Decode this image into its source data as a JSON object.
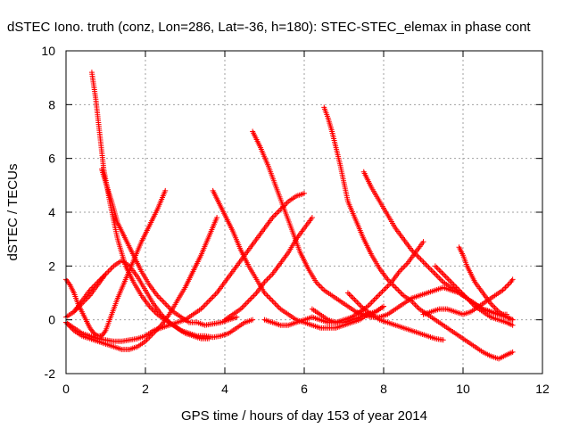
{
  "chart_data": {
    "type": "scatter",
    "title": "dSTEC Iono. truth (conz, Lon=286, Lat=-36, h=180): STEC-STEC_elemax in phase cont",
    "xlabel": "GPS time / hours of day 153 of year 2014",
    "ylabel": "dSTEC  / TECUs",
    "xlim": [
      0,
      12
    ],
    "ylim": [
      -2,
      10
    ],
    "xticks": [
      "0",
      "2",
      "4",
      "6",
      "8",
      "10",
      "12"
    ],
    "yticks": [
      "-2",
      "0",
      "2",
      "4",
      "6",
      "8",
      "10"
    ],
    "grid": true,
    "legend": "none",
    "marker": "+",
    "color": "#ff0000",
    "series": [
      {
        "x": [
          0.65,
          0.75,
          0.85,
          0.95,
          1.1,
          1.3,
          1.5,
          1.7,
          1.9,
          2.1,
          2.3,
          2.5,
          2.7,
          2.9,
          3.1,
          3.3,
          3.5,
          3.7,
          3.9,
          4.1,
          4.3,
          4.5,
          4.7
        ],
        "y": [
          9.2,
          8.2,
          6.9,
          5.6,
          4.4,
          3.0,
          2.0,
          1.4,
          0.9,
          0.5,
          0.2,
          0.0,
          -0.2,
          -0.4,
          -0.5,
          -0.6,
          -0.6,
          -0.65,
          -0.6,
          -0.5,
          -0.3,
          -0.1,
          0.0
        ]
      },
      {
        "x": [
          0.9,
          1.0,
          1.15,
          1.3,
          1.5,
          1.7,
          1.9,
          2.1,
          2.3,
          2.5,
          2.7,
          2.9,
          3.1,
          3.3,
          3.5,
          3.7,
          3.9,
          4.1,
          4.3
        ],
        "y": [
          5.6,
          5.1,
          4.4,
          3.6,
          3.0,
          2.4,
          1.8,
          1.3,
          0.9,
          0.6,
          0.3,
          0.1,
          -0.1,
          -0.1,
          -0.2,
          -0.15,
          -0.1,
          0.0,
          0.1
        ]
      },
      {
        "x": [
          0.0,
          0.2,
          0.4,
          0.6,
          0.8,
          1.0,
          1.2,
          1.4,
          1.6,
          1.8,
          2.0,
          2.2,
          2.4,
          2.6,
          2.8,
          3.0,
          3.2,
          3.4,
          3.6,
          3.8,
          4.0,
          4.2,
          4.4,
          4.6,
          4.8,
          5.0,
          5.2,
          5.4,
          5.6,
          5.8,
          6.0
        ],
        "y": [
          -0.1,
          -0.3,
          -0.5,
          -0.6,
          -0.7,
          -0.75,
          -0.8,
          -0.8,
          -0.75,
          -0.7,
          -0.6,
          -0.4,
          -0.3,
          -0.2,
          -0.1,
          0.0,
          0.2,
          0.4,
          0.7,
          1.0,
          1.4,
          1.8,
          2.2,
          2.6,
          3.0,
          3.4,
          3.8,
          4.1,
          4.4,
          4.6,
          4.7
        ]
      },
      {
        "x": [
          0.0,
          0.1,
          0.2,
          0.3,
          0.4,
          0.5,
          0.6,
          0.7,
          0.8,
          0.9,
          1.0,
          1.1,
          1.3,
          1.5,
          1.7,
          1.9,
          2.1,
          2.3,
          2.5
        ],
        "y": [
          1.5,
          1.3,
          1.0,
          0.6,
          0.3,
          0.0,
          -0.3,
          -0.5,
          -0.6,
          -0.6,
          -0.4,
          0.0,
          0.8,
          1.5,
          2.2,
          2.9,
          3.5,
          4.1,
          4.8
        ]
      },
      {
        "x": [
          0.0,
          0.2,
          0.4,
          0.6,
          0.8,
          1.0,
          1.2,
          1.4,
          1.6,
          1.8,
          2.0,
          2.2,
          2.4,
          2.6,
          2.8,
          3.0,
          3.2,
          3.4,
          3.6,
          3.8
        ],
        "y": [
          -0.1,
          -0.4,
          -0.6,
          -0.7,
          -0.8,
          -0.9,
          -1.0,
          -1.1,
          -1.1,
          -1.0,
          -0.8,
          -0.5,
          -0.2,
          0.2,
          0.7,
          1.2,
          1.8,
          2.4,
          3.1,
          3.8
        ]
      },
      {
        "x": [
          0.0,
          0.2,
          0.4,
          0.6,
          0.8,
          1.0,
          1.2,
          1.4,
          1.6,
          1.8,
          2.0,
          2.2,
          2.4,
          2.6,
          2.8,
          3.0,
          3.2,
          3.4,
          3.6
        ],
        "y": [
          0.1,
          0.3,
          0.6,
          0.9,
          1.3,
          1.7,
          2.0,
          2.2,
          2.0,
          1.6,
          1.1,
          0.6,
          0.2,
          -0.1,
          -0.3,
          -0.5,
          -0.6,
          -0.7,
          -0.7
        ]
      },
      {
        "x": [
          0.2,
          0.4,
          0.6,
          0.8,
          1.0
        ],
        "y": [
          0.3,
          0.7,
          1.1,
          1.4,
          1.7
        ]
      },
      {
        "x": [
          3.7,
          3.8,
          4.0,
          4.2,
          4.4,
          4.6,
          4.8,
          5.0,
          5.2,
          5.4,
          5.6,
          5.8,
          6.0,
          6.2,
          6.4,
          6.6,
          6.8,
          7.0,
          7.2,
          7.4,
          7.6,
          7.8,
          8.0
        ],
        "y": [
          4.8,
          4.5,
          3.9,
          3.3,
          2.6,
          2.0,
          1.5,
          1.0,
          0.7,
          0.4,
          0.2,
          0.0,
          -0.1,
          -0.2,
          -0.3,
          -0.3,
          -0.3,
          -0.2,
          -0.1,
          0.0,
          0.2,
          0.3,
          0.5
        ]
      },
      {
        "x": [
          4.7,
          4.9,
          5.1,
          5.3,
          5.5,
          5.7,
          5.9,
          6.1,
          6.3,
          6.5,
          6.7,
          6.9,
          7.1,
          7.3,
          7.5,
          7.7,
          7.9,
          8.1,
          8.3,
          8.5,
          8.7,
          8.9,
          9.1,
          9.3,
          9.5,
          9.7,
          9.9,
          10.1,
          10.3,
          10.5,
          10.7,
          10.9,
          11.1
        ],
        "y": [
          7.0,
          6.4,
          5.7,
          4.9,
          4.1,
          3.3,
          2.5,
          1.9,
          1.4,
          1.1,
          0.9,
          0.7,
          0.5,
          0.3,
          0.2,
          0.1,
          0.1,
          0.2,
          0.4,
          0.6,
          0.8,
          0.9,
          1.0,
          1.1,
          1.2,
          1.1,
          1.0,
          0.8,
          0.6,
          0.4,
          0.3,
          0.2,
          0.2
        ]
      },
      {
        "x": [
          6.5,
          6.6,
          6.7,
          6.8,
          6.9,
          7.0,
          7.1,
          7.3,
          7.5,
          7.7,
          7.9,
          8.1,
          8.3,
          8.5,
          8.7,
          8.9,
          9.1,
          9.3,
          9.5,
          9.7,
          9.9,
          10.1,
          10.3,
          10.5,
          10.7,
          10.9,
          11.1,
          11.25
        ],
        "y": [
          7.9,
          7.5,
          7.0,
          6.4,
          5.8,
          5.1,
          4.4,
          3.7,
          3.0,
          2.4,
          1.9,
          1.5,
          1.2,
          0.9,
          0.7,
          0.4,
          0.2,
          0.0,
          -0.2,
          -0.4,
          -0.6,
          -0.8,
          -1.0,
          -1.2,
          -1.35,
          -1.45,
          -1.3,
          -1.2
        ]
      },
      {
        "x": [
          7.5,
          7.7,
          7.9,
          8.1,
          8.3,
          8.5,
          8.7,
          8.9,
          9.1,
          9.3,
          9.5,
          9.7,
          9.9,
          10.1,
          10.3,
          10.5,
          10.7,
          10.9,
          11.1,
          11.25
        ],
        "y": [
          5.5,
          4.9,
          4.4,
          3.9,
          3.4,
          3.0,
          2.6,
          2.3,
          2.0,
          1.7,
          1.4,
          1.2,
          1.0,
          0.8,
          0.6,
          0.4,
          0.3,
          0.2,
          0.1,
          0.0
        ]
      },
      {
        "x": [
          5.0,
          5.2,
          5.4,
          5.6,
          5.8,
          6.0,
          6.2,
          6.4,
          6.6,
          6.8,
          7.0,
          7.2,
          7.4,
          7.6,
          7.8,
          8.0,
          8.2,
          8.4,
          8.6,
          8.8,
          9.0
        ],
        "y": [
          0.0,
          -0.1,
          -0.2,
          -0.2,
          -0.1,
          0.0,
          0.1,
          0.0,
          -0.1,
          -0.1,
          0.0,
          0.1,
          0.3,
          0.5,
          0.8,
          1.1,
          1.4,
          1.8,
          2.1,
          2.5,
          2.9
        ]
      },
      {
        "x": [
          4.0,
          4.2,
          4.4,
          4.6,
          4.8,
          5.0,
          5.2,
          5.4,
          5.6,
          5.8,
          6.0,
          6.2
        ],
        "y": [
          0.0,
          0.2,
          0.4,
          0.7,
          1.0,
          1.4,
          1.7,
          2.1,
          2.5,
          3.0,
          3.4,
          3.8
        ]
      },
      {
        "x": [
          7.1,
          7.3,
          7.5,
          7.7,
          7.9,
          8.1,
          8.3,
          8.5,
          8.7,
          8.9,
          9.1,
          9.3,
          9.5
        ],
        "y": [
          1.0,
          0.7,
          0.4,
          0.2,
          0.0,
          -0.1,
          -0.2,
          -0.3,
          -0.4,
          -0.5,
          -0.6,
          -0.7,
          -0.75
        ]
      },
      {
        "x": [
          9.3,
          9.5,
          9.7,
          9.9,
          10.1,
          10.3,
          10.5,
          10.7,
          10.9,
          11.1,
          11.25
        ],
        "y": [
          2.0,
          1.7,
          1.4,
          1.1,
          0.8,
          0.5,
          0.3,
          0.1,
          0.0,
          -0.1,
          -0.2
        ]
      },
      {
        "x": [
          9.9,
          10.0,
          10.1,
          10.2,
          10.3,
          10.5,
          10.7,
          10.9,
          11.1,
          11.25
        ],
        "y": [
          2.7,
          2.4,
          2.0,
          1.7,
          1.4,
          1.0,
          0.6,
          0.3,
          0.1,
          0.0
        ]
      },
      {
        "x": [
          9.0,
          9.2,
          9.4,
          9.6,
          9.8,
          10.0,
          10.2,
          10.4,
          10.6,
          10.8,
          11.0,
          11.2,
          11.25
        ],
        "y": [
          0.2,
          0.3,
          0.4,
          0.4,
          0.3,
          0.2,
          0.3,
          0.5,
          0.7,
          0.9,
          1.1,
          1.4,
          1.5
        ]
      },
      {
        "x": [
          6.2,
          6.4,
          6.6,
          6.8,
          7.0,
          7.2,
          7.4,
          7.6,
          7.8,
          8.0
        ],
        "y": [
          0.4,
          0.2,
          0.0,
          -0.1,
          -0.1,
          0.0,
          0.1,
          0.2,
          0.3,
          0.5
        ]
      }
    ]
  }
}
